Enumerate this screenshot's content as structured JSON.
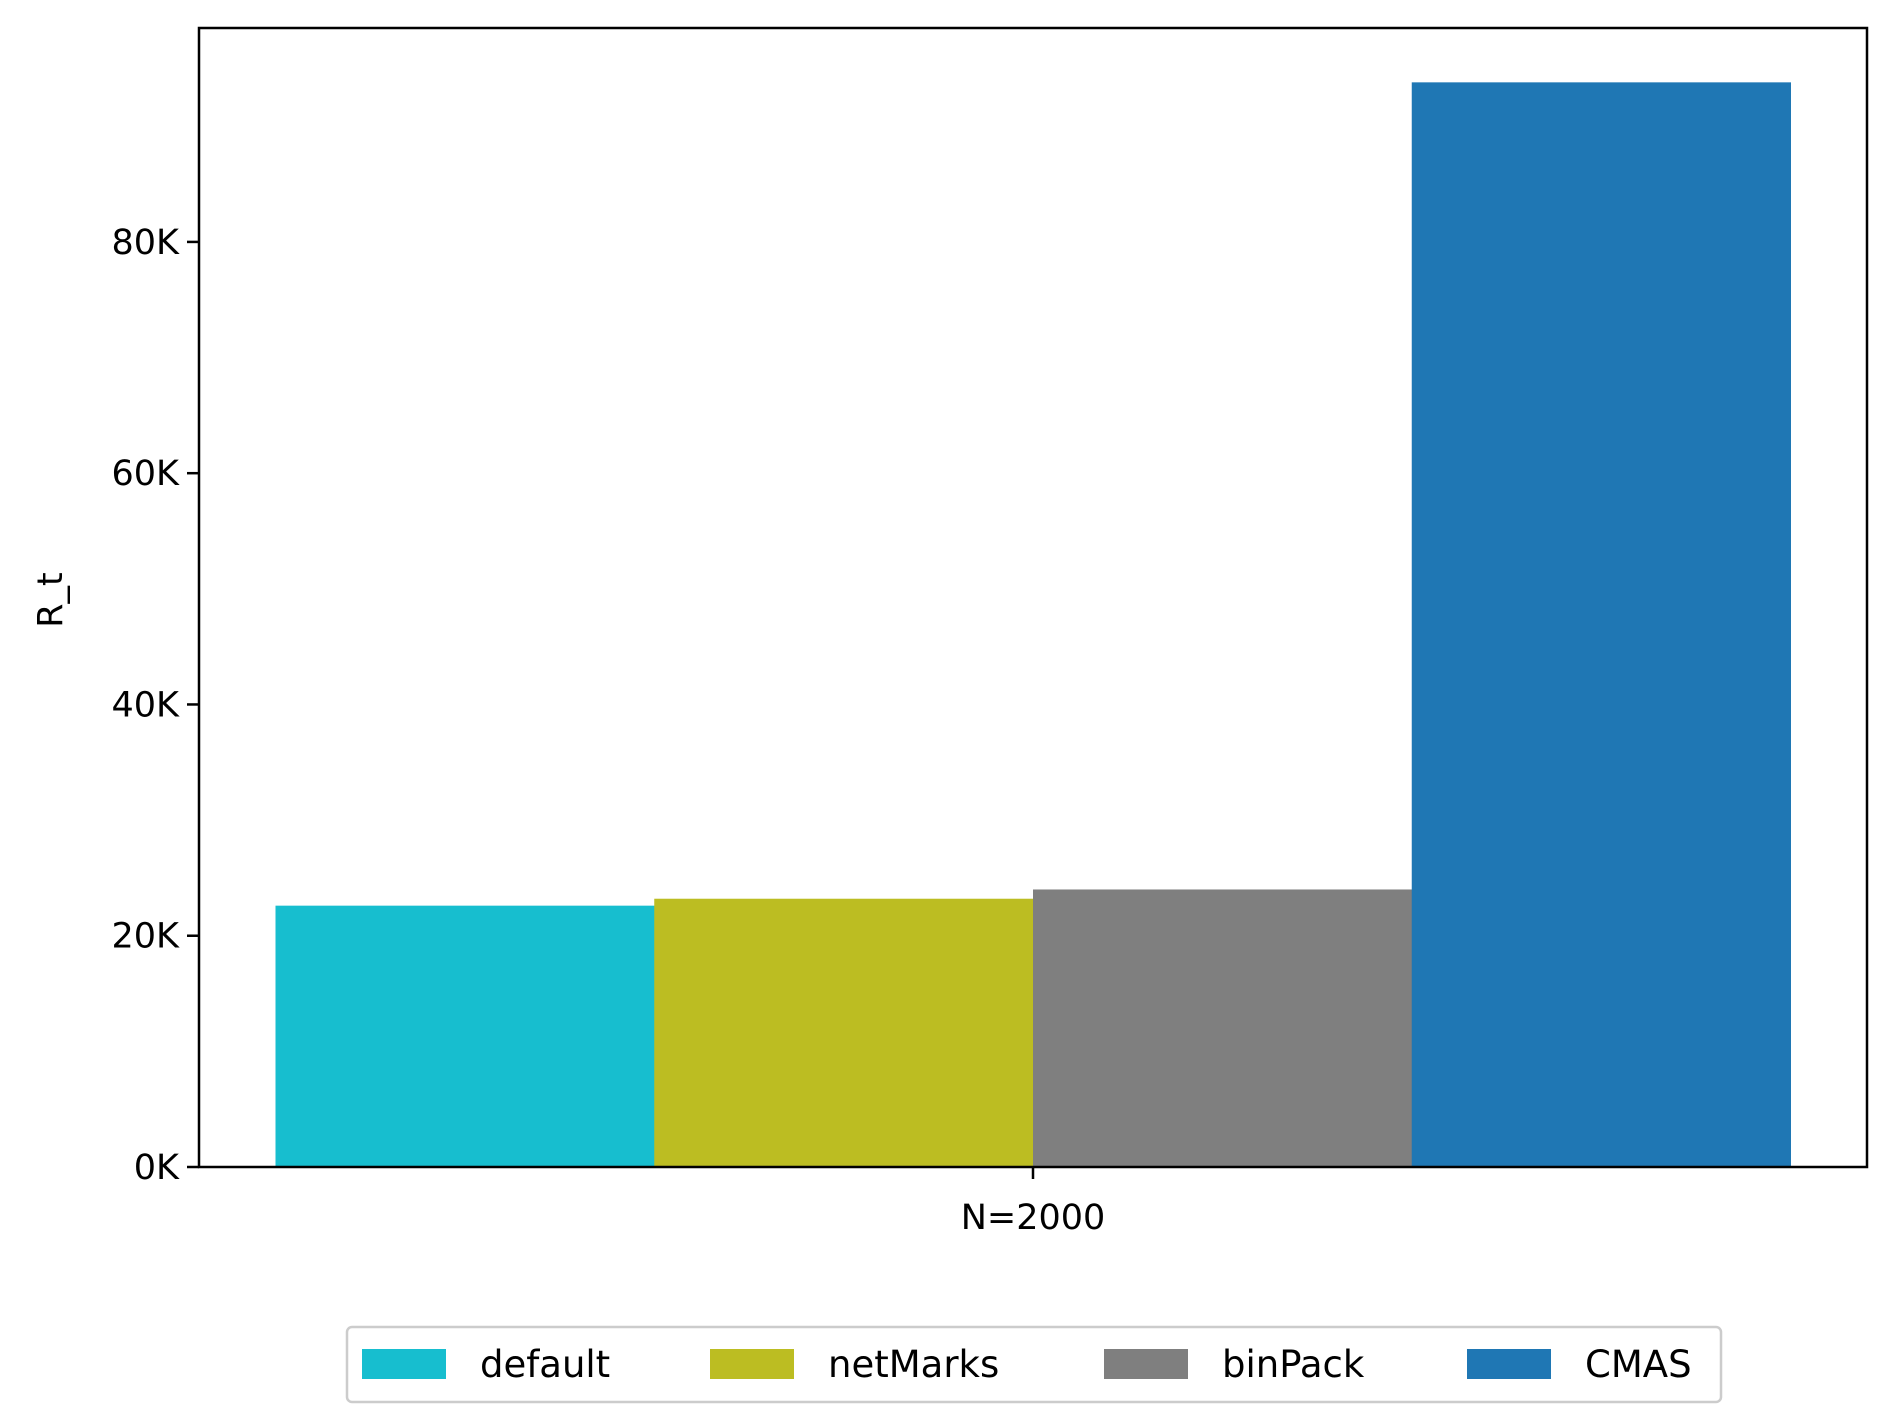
{
  "chart_data": {
    "type": "bar",
    "categories": [
      "N=2000"
    ],
    "series": [
      {
        "name": "default",
        "values": [
          22600
        ],
        "color": "#17becf"
      },
      {
        "name": "netMarks",
        "values": [
          23200
        ],
        "color": "#bcbd22"
      },
      {
        "name": "binPack",
        "values": [
          24000
        ],
        "color": "#7f7f7f"
      },
      {
        "name": "CMAS",
        "values": [
          93800
        ],
        "color": "#1f77b4"
      }
    ],
    "title": "",
    "xlabel": "",
    "ylabel": "R_t",
    "ylim": [
      0,
      98500
    ],
    "yticks": [
      0,
      20000,
      40000,
      60000,
      80000
    ],
    "ytick_labels": [
      "0K",
      "20K",
      "40K",
      "60K",
      "80K"
    ],
    "grid": false,
    "legend_position": "bottom-center"
  }
}
